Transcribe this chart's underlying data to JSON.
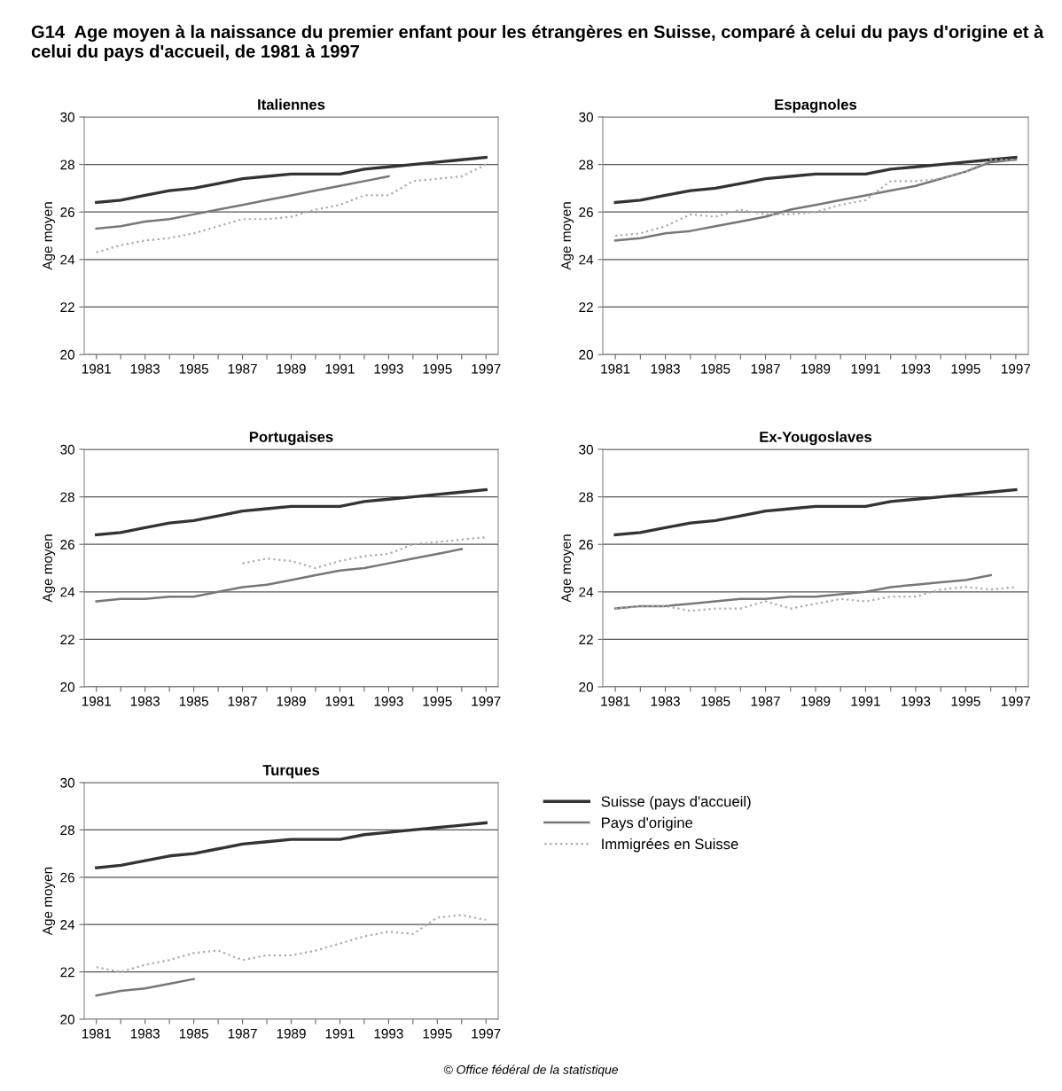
{
  "chart_data": [
    {
      "type": "line",
      "title": "Italiennes",
      "ylabel": "Age moyen",
      "annotations": [
        "G14  Age moyen à la naissance du premier enfant pour les étrangères en Suisse, comparé à celui du pays d'origine et à celui du pays d'accueil, de 1981 à 1997"
      ],
      "x": [
        1981,
        1982,
        1983,
        1984,
        1985,
        1986,
        1987,
        1988,
        1989,
        1990,
        1991,
        1992,
        1993,
        1994,
        1995,
        1996,
        1997
      ],
      "series": [
        {
          "color": "#333333",
          "line_style": "solid",
          "values": [
            26.4,
            26.5,
            26.7,
            26.9,
            27.0,
            27.2,
            27.4,
            27.5,
            27.6,
            27.6,
            27.6,
            27.8,
            27.9,
            28.0,
            28.1,
            28.2,
            28.3
          ]
        },
        {
          "color": "#777777",
          "line_style": "solid",
          "values": [
            25.3,
            25.4,
            25.6,
            25.7,
            25.9,
            26.1,
            26.3,
            26.5,
            26.7,
            26.9,
            27.1,
            27.3,
            27.5,
            null,
            null,
            null,
            null
          ]
        },
        {
          "color": "#aaaaaa",
          "line_style": "dotted",
          "values": [
            24.3,
            24.6,
            24.8,
            24.9,
            25.1,
            25.4,
            25.7,
            25.7,
            25.8,
            26.1,
            26.3,
            26.7,
            26.7,
            27.3,
            27.4,
            27.5,
            28.0
          ]
        }
      ],
      "xlim": [
        1980.5,
        1997.5
      ],
      "xticks": [
        1981,
        {
          "value": 1982,
          "label": null
        },
        1983,
        {
          "value": 1984,
          "label": null
        },
        1985,
        {
          "value": 1986,
          "label": null
        },
        1987,
        {
          "value": 1988,
          "label": null
        },
        1989,
        {
          "value": 1990,
          "label": null
        },
        1991,
        {
          "value": 1992,
          "label": null
        },
        1993,
        {
          "value": 1994,
          "label": null
        },
        1995,
        {
          "value": 1996,
          "label": null
        },
        1997
      ],
      "ylim": [
        20,
        30
      ],
      "yticks": [
        20,
        22,
        24,
        26,
        28,
        30
      ],
      "grid": "y"
    },
    {
      "type": "line",
      "title": "Espagnoles",
      "ylabel": "Age moyen",
      "x": [
        1981,
        1982,
        1983,
        1984,
        1985,
        1986,
        1987,
        1988,
        1989,
        1990,
        1991,
        1992,
        1993,
        1994,
        1995,
        1996,
        1997
      ],
      "series": [
        {
          "color": "#333333",
          "line_style": "solid",
          "values": [
            26.4,
            26.5,
            26.7,
            26.9,
            27.0,
            27.2,
            27.4,
            27.5,
            27.6,
            27.6,
            27.6,
            27.8,
            27.9,
            28.0,
            28.1,
            28.2,
            28.3
          ]
        },
        {
          "color": "#777777",
          "line_style": "solid",
          "values": [
            24.8,
            24.9,
            25.1,
            25.2,
            25.4,
            25.6,
            25.8,
            26.1,
            26.3,
            26.5,
            26.7,
            26.9,
            27.1,
            27.4,
            27.7,
            28.1,
            28.2
          ]
        },
        {
          "color": "#aaaaaa",
          "line_style": "dotted",
          "values": [
            25.0,
            25.1,
            25.4,
            25.9,
            25.8,
            26.1,
            25.9,
            25.9,
            26.0,
            26.3,
            26.5,
            27.3,
            27.3,
            27.4,
            27.7,
            28.2,
            28.2
          ]
        }
      ],
      "xlim": [
        1980.5,
        1997.5
      ],
      "xticks": [
        1981,
        {
          "value": 1982,
          "label": null
        },
        1983,
        {
          "value": 1984,
          "label": null
        },
        1985,
        {
          "value": 1986,
          "label": null
        },
        1987,
        {
          "value": 1988,
          "label": null
        },
        1989,
        {
          "value": 1990,
          "label": null
        },
        1991,
        {
          "value": 1992,
          "label": null
        },
        1993,
        {
          "value": 1994,
          "label": null
        },
        1995,
        {
          "value": 1996,
          "label": null
        },
        1997
      ],
      "ylim": [
        20,
        30
      ],
      "yticks": [
        20,
        22,
        24,
        26,
        28,
        30
      ],
      "grid": "y"
    },
    {
      "type": "line",
      "title": "Portugaises",
      "ylabel": "Age moyen",
      "x": [
        1981,
        1982,
        1983,
        1984,
        1985,
        1986,
        1987,
        1988,
        1989,
        1990,
        1991,
        1992,
        1993,
        1994,
        1995,
        1996,
        1997
      ],
      "series": [
        {
          "color": "#333333",
          "line_style": "solid",
          "values": [
            26.4,
            26.5,
            26.7,
            26.9,
            27.0,
            27.2,
            27.4,
            27.5,
            27.6,
            27.6,
            27.6,
            27.8,
            27.9,
            28.0,
            28.1,
            28.2,
            28.3
          ]
        },
        {
          "color": "#777777",
          "line_style": "solid",
          "values": [
            23.6,
            23.7,
            23.7,
            23.8,
            23.8,
            24.0,
            24.2,
            24.3,
            24.5,
            24.7,
            24.9,
            25.0,
            25.2,
            25.4,
            25.6,
            25.8,
            null
          ]
        },
        {
          "color": "#aaaaaa",
          "line_style": "dotted",
          "values": [
            null,
            null,
            null,
            null,
            null,
            null,
            25.2,
            25.4,
            25.3,
            25.0,
            25.3,
            25.5,
            25.6,
            26.0,
            26.1,
            26.2,
            26.3
          ]
        }
      ],
      "xlim": [
        1980.5,
        1997.5
      ],
      "xticks": [
        1981,
        {
          "value": 1982,
          "label": null
        },
        1983,
        {
          "value": 1984,
          "label": null
        },
        1985,
        {
          "value": 1986,
          "label": null
        },
        1987,
        {
          "value": 1988,
          "label": null
        },
        1989,
        {
          "value": 1990,
          "label": null
        },
        1991,
        {
          "value": 1992,
          "label": null
        },
        1993,
        {
          "value": 1994,
          "label": null
        },
        1995,
        {
          "value": 1996,
          "label": null
        },
        1997
      ],
      "ylim": [
        20,
        30
      ],
      "yticks": [
        20,
        22,
        24,
        26,
        28,
        30
      ],
      "grid": "y"
    },
    {
      "type": "line",
      "title": "Ex-Yougoslaves",
      "ylabel": "Age moyen",
      "x": [
        1981,
        1982,
        1983,
        1984,
        1985,
        1986,
        1987,
        1988,
        1989,
        1990,
        1991,
        1992,
        1993,
        1994,
        1995,
        1996,
        1997
      ],
      "series": [
        {
          "color": "#333333",
          "line_style": "solid",
          "values": [
            26.4,
            26.5,
            26.7,
            26.9,
            27.0,
            27.2,
            27.4,
            27.5,
            27.6,
            27.6,
            27.6,
            27.8,
            27.9,
            28.0,
            28.1,
            28.2,
            28.3
          ]
        },
        {
          "color": "#777777",
          "line_style": "solid",
          "values": [
            23.3,
            23.4,
            23.4,
            23.5,
            23.6,
            23.7,
            23.7,
            23.8,
            23.8,
            23.9,
            24.0,
            24.2,
            24.3,
            24.4,
            24.5,
            24.7,
            null
          ]
        },
        {
          "color": "#aaaaaa",
          "line_style": "dotted",
          "values": [
            23.3,
            23.4,
            23.4,
            23.2,
            23.3,
            23.3,
            23.6,
            23.3,
            23.5,
            23.7,
            23.6,
            23.8,
            23.8,
            24.1,
            24.2,
            24.1,
            24.2
          ]
        }
      ],
      "xlim": [
        1980.5,
        1997.5
      ],
      "xticks": [
        1981,
        {
          "value": 1982,
          "label": null
        },
        1983,
        {
          "value": 1984,
          "label": null
        },
        1985,
        {
          "value": 1986,
          "label": null
        },
        1987,
        {
          "value": 1988,
          "label": null
        },
        1989,
        {
          "value": 1990,
          "label": null
        },
        1991,
        {
          "value": 1992,
          "label": null
        },
        1993,
        {
          "value": 1994,
          "label": null
        },
        1995,
        {
          "value": 1996,
          "label": null
        },
        1997
      ],
      "ylim": [
        20,
        30
      ],
      "yticks": [
        20,
        22,
        24,
        26,
        28,
        30
      ],
      "grid": "y"
    },
    {
      "type": "line",
      "title": "Turques",
      "ylabel": "Age moyen",
      "legend": "right",
      "annotations": [
        "© Office fédéral de la statistique"
      ],
      "x": [
        1981,
        1982,
        1983,
        1984,
        1985,
        1986,
        1987,
        1988,
        1989,
        1990,
        1991,
        1992,
        1993,
        1994,
        1995,
        1996,
        1997
      ],
      "series": [
        {
          "name": "Suisse (pays d'accueil)",
          "color": "#333333",
          "line_style": "solid",
          "values": [
            26.4,
            26.5,
            26.7,
            26.9,
            27.0,
            27.2,
            27.4,
            27.5,
            27.6,
            27.6,
            27.6,
            27.8,
            27.9,
            28.0,
            28.1,
            28.2,
            28.3
          ]
        },
        {
          "name": "Pays d'origine",
          "color": "#777777",
          "line_style": "solid",
          "values": [
            21.0,
            21.2,
            21.3,
            21.5,
            21.7,
            null,
            null,
            null,
            null,
            null,
            null,
            null,
            null,
            null,
            null,
            null,
            null
          ]
        },
        {
          "name": "Immigrées en Suisse",
          "color": "#aaaaaa",
          "line_style": "dotted",
          "values": [
            22.2,
            22.0,
            22.3,
            22.5,
            22.8,
            22.9,
            22.5,
            22.7,
            22.7,
            22.9,
            23.2,
            23.5,
            23.7,
            23.6,
            24.3,
            24.4,
            24.2
          ]
        }
      ],
      "xlim": [
        1980.5,
        1997.5
      ],
      "xticks": [
        1981,
        {
          "value": 1982,
          "label": null
        },
        1983,
        {
          "value": 1984,
          "label": null
        },
        1985,
        {
          "value": 1986,
          "label": null
        },
        1987,
        {
          "value": 1988,
          "label": null
        },
        1989,
        {
          "value": 1990,
          "label": null
        },
        1991,
        {
          "value": 1992,
          "label": null
        },
        1993,
        {
          "value": 1994,
          "label": null
        },
        1995,
        {
          "value": 1996,
          "label": null
        },
        1997
      ],
      "ylim": [
        20,
        30
      ],
      "yticks": [
        20,
        22,
        24,
        26,
        28,
        30
      ],
      "grid": "y"
    }
  ]
}
